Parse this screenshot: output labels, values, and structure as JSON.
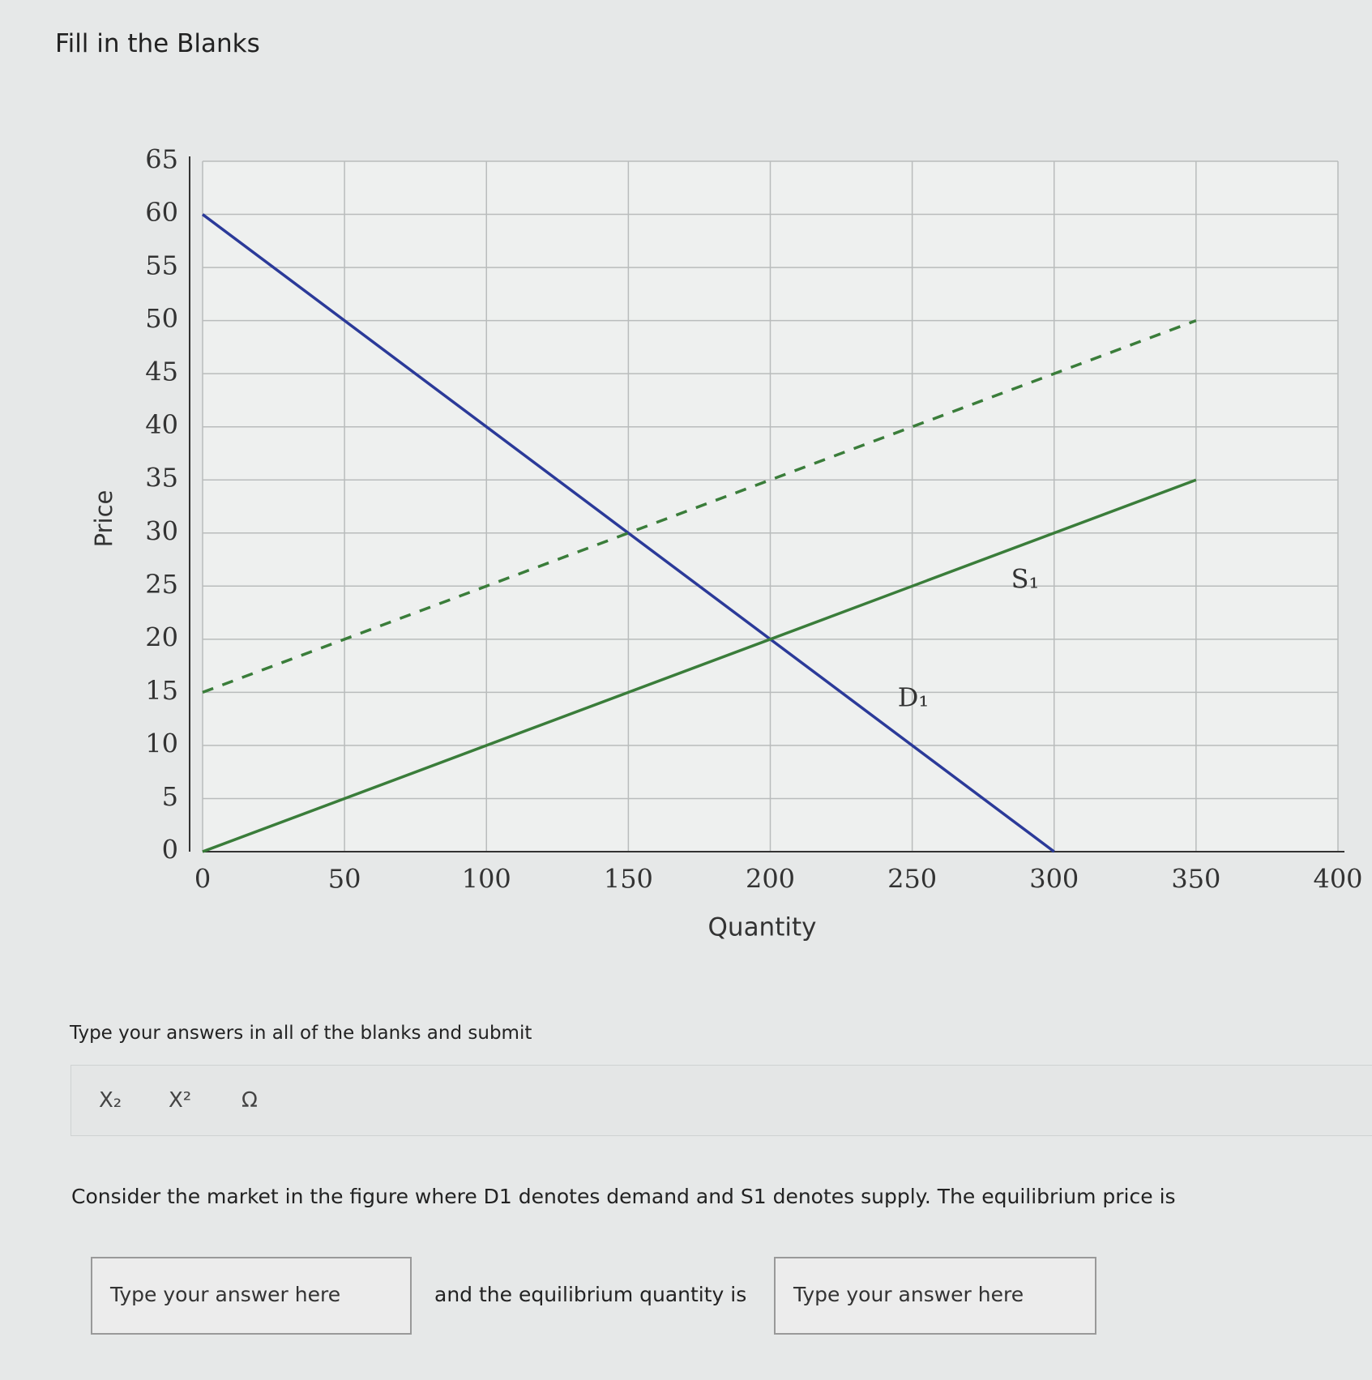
{
  "page": {
    "title": "Fill in the Blanks",
    "instruction": "Type your answers in all of the blanks and submit",
    "toolbar": [
      "X₂",
      "X²",
      "Ω"
    ],
    "question": "Consider the market in the figure where D1 denotes demand and S1 denotes supply. The equilibrium price is",
    "answer_1_placeholder": "Type your answer here",
    "connector": "and the equilibrium quantity is",
    "answer_2_placeholder": "Type your answer here"
  },
  "chart_data": {
    "type": "line",
    "xlabel": "Quantity",
    "ylabel": "Price",
    "xlim": [
      0,
      400
    ],
    "xticks": [
      0,
      50,
      100,
      150,
      200,
      250,
      300,
      350,
      400
    ],
    "ylim": [
      0,
      65
    ],
    "yticks": [
      0,
      5,
      10,
      15,
      20,
      25,
      30,
      35,
      40,
      45,
      50,
      55,
      60,
      65
    ],
    "grid": true,
    "series": [
      {
        "name": "D₁",
        "color": "#2b3a99",
        "style": "solid",
        "x": [
          0,
          300
        ],
        "values": [
          60,
          0
        ]
      },
      {
        "name": "S₁",
        "color": "#3a7d3a",
        "style": "solid",
        "x": [
          0,
          350
        ],
        "values": [
          0,
          35
        ]
      },
      {
        "color": "#3a7d3a",
        "style": "dashed",
        "x": [
          0,
          350
        ],
        "values": [
          15,
          50
        ]
      }
    ]
  }
}
